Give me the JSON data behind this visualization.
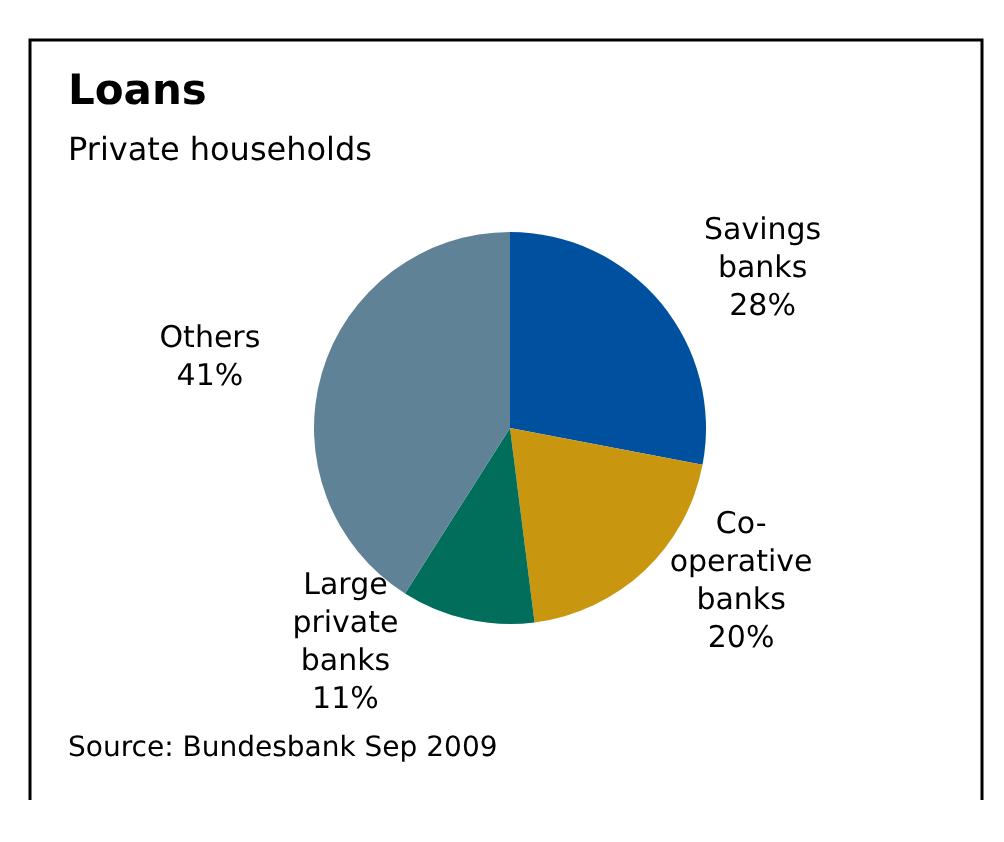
{
  "chart_data": {
    "type": "pie",
    "title": "Loans",
    "subtitle": "Private households",
    "categories": [
      "Savings\nbanks",
      "Co-\noperative\nbanks",
      "Large\nprivate\nbanks",
      "Others"
    ],
    "values": [
      28,
      20,
      11,
      41
    ],
    "colors": [
      "#0050a0",
      "#c8960f",
      "#006e5a",
      "#5f8296"
    ],
    "value_labels": [
      "28%",
      "20%",
      "11%",
      "41%"
    ],
    "annotations": [
      "Source: Bundesbank Sep 2009"
    ]
  }
}
